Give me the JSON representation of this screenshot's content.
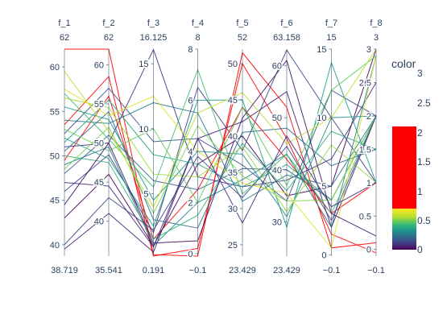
{
  "chart_data": {
    "type": "parallel_coordinates",
    "title": "",
    "colorbar": {
      "title": "color",
      "ticks": [
        "0",
        "0.5",
        "1",
        "1.5",
        "2",
        "2.5",
        "3"
      ],
      "range": [
        0,
        3
      ],
      "colorscale": "viridis up to 1, red above 1"
    },
    "dimensions": [
      {
        "name": "f_1",
        "top_label": "62",
        "bottom_label": "38.719",
        "range": [
          38.719,
          62
        ],
        "ticks": [
          "40",
          "45",
          "50",
          "55",
          "60"
        ]
      },
      {
        "name": "f_2",
        "top_label": "62",
        "bottom_label": "35.541",
        "range": [
          35.541,
          62
        ],
        "ticks": [
          "40",
          "45",
          "50",
          "55",
          "60"
        ]
      },
      {
        "name": "f_3",
        "top_label": "16.125",
        "bottom_label": "0.191",
        "range": [
          0.191,
          16.125
        ],
        "ticks": [
          "5",
          "10",
          "15"
        ]
      },
      {
        "name": "f_4",
        "top_label": "8",
        "bottom_label": "−0.1",
        "range": [
          -0.1,
          8
        ],
        "ticks": [
          "0",
          "2",
          "4",
          "6",
          "8"
        ]
      },
      {
        "name": "f_5",
        "top_label": "52",
        "bottom_label": "23.429",
        "range": [
          23.429,
          52
        ],
        "ticks": [
          "25",
          "30",
          "35",
          "40",
          "45",
          "50"
        ]
      },
      {
        "name": "f_6",
        "top_label": "63.158",
        "bottom_label": "23.429",
        "range": [
          23.429,
          63.158
        ],
        "ticks": [
          "30",
          "40",
          "50",
          "60"
        ]
      },
      {
        "name": "f_7",
        "top_label": "15",
        "bottom_label": "−0.1",
        "range": [
          -0.1,
          15
        ],
        "ticks": [
          "0",
          "5",
          "10",
          "15"
        ]
      },
      {
        "name": "f_8",
        "top_label": "3",
        "bottom_label": "−0.1",
        "range": [
          -0.1,
          3
        ],
        "ticks": [
          "0",
          "0.5",
          "1",
          "1.5",
          "2",
          "2.5",
          "3"
        ]
      }
    ],
    "lines": [
      {
        "color": 2.0,
        "values": [
          62.0,
          62.0,
          0.3,
          -0.1,
          51.5,
          52.0,
          0.5,
          0.1
        ]
      },
      {
        "color": 2.0,
        "values": [
          53.5,
          58.5,
          0.2,
          0.2,
          50.0,
          46.0,
          1.5,
          -0.05
        ]
      },
      {
        "color": 2.0,
        "values": [
          49.5,
          56.0,
          1.5,
          2.5,
          44.0,
          42.0,
          3.0,
          1.0
        ]
      },
      {
        "color": 0.0,
        "values": [
          43.0,
          46.0,
          1.0,
          3.5,
          40.0,
          35.0,
          5.0,
          3.0
        ]
      },
      {
        "color": 0.1,
        "values": [
          39.5,
          41.0,
          0.5,
          4.5,
          42.0,
          55.0,
          2.0,
          2.0
        ]
      },
      {
        "color": 0.2,
        "values": [
          46.0,
          48.5,
          2.0,
          6.5,
          38.0,
          63.0,
          10.0,
          1.0
        ]
      },
      {
        "color": 0.15,
        "values": [
          51.0,
          50.0,
          16.1,
          3.0,
          33.0,
          38.0,
          7.0,
          2.5
        ]
      },
      {
        "color": 0.25,
        "values": [
          52.5,
          57.0,
          9.0,
          4.5,
          36.0,
          34.0,
          12.0,
          2.0
        ]
      },
      {
        "color": 0.3,
        "values": [
          48.0,
          51.0,
          6.0,
          2.5,
          35.5,
          40.0,
          4.0,
          2.0
        ]
      },
      {
        "color": 0.35,
        "values": [
          50.5,
          54.0,
          3.0,
          1.0,
          40.5,
          48.0,
          6.5,
          1.5
        ]
      },
      {
        "color": 0.4,
        "values": [
          54.0,
          52.5,
          12.0,
          5.5,
          31.0,
          39.0,
          5.0,
          2.0
        ]
      },
      {
        "color": 0.45,
        "values": [
          49.0,
          49.5,
          1.0,
          2.0,
          34.0,
          43.0,
          2.0,
          2.9
        ]
      },
      {
        "color": 0.5,
        "values": [
          55.5,
          53.0,
          4.5,
          4.0,
          37.5,
          31.0,
          10.0,
          2.0
        ]
      },
      {
        "color": 0.55,
        "values": [
          52.0,
          48.0,
          2.5,
          6.0,
          45.0,
          29.0,
          14.0,
          1.0
        ]
      },
      {
        "color": 0.6,
        "values": [
          51.5,
          55.5,
          8.0,
          3.5,
          33.0,
          41.0,
          4.0,
          2.0
        ]
      },
      {
        "color": 0.65,
        "values": [
          50.0,
          47.5,
          1.5,
          1.5,
          39.0,
          36.0,
          9.0,
          1.5
        ]
      },
      {
        "color": 0.7,
        "values": [
          57.0,
          50.5,
          5.5,
          7.2,
          32.0,
          43.0,
          3.0,
          2.0
        ]
      },
      {
        "color": 0.75,
        "values": [
          53.0,
          49.0,
          10.0,
          2.0,
          44.0,
          37.0,
          12.0,
          2.9
        ]
      },
      {
        "color": 0.8,
        "values": [
          48.5,
          52.0,
          3.5,
          5.0,
          34.5,
          34.0,
          4.0,
          2.0
        ]
      },
      {
        "color": 0.85,
        "values": [
          56.5,
          54.5,
          6.5,
          3.0,
          38.5,
          32.0,
          8.0,
          1.0
        ]
      },
      {
        "color": 0.9,
        "values": [
          59.5,
          51.5,
          4.0,
          5.5,
          46.0,
          45.0,
          10.0,
          3.0
        ]
      },
      {
        "color": 0.95,
        "values": [
          57.5,
          53.5,
          12.5,
          4.0,
          33.5,
          35.5,
          0.5,
          2.9
        ]
      },
      {
        "color": 0.05,
        "values": [
          44.5,
          50.0,
          1.2,
          0.5,
          42.5,
          61.0,
          3.0,
          0.2
        ]
      },
      {
        "color": 0.12,
        "values": [
          47.0,
          44.5,
          0.9,
          4.5,
          28.0,
          46.5,
          3.5,
          1.0
        ]
      },
      {
        "color": 0.22,
        "values": [
          40.0,
          43.0,
          2.2,
          3.8,
          31.5,
          44.5,
          2.5,
          2.0
        ]
      }
    ]
  }
}
